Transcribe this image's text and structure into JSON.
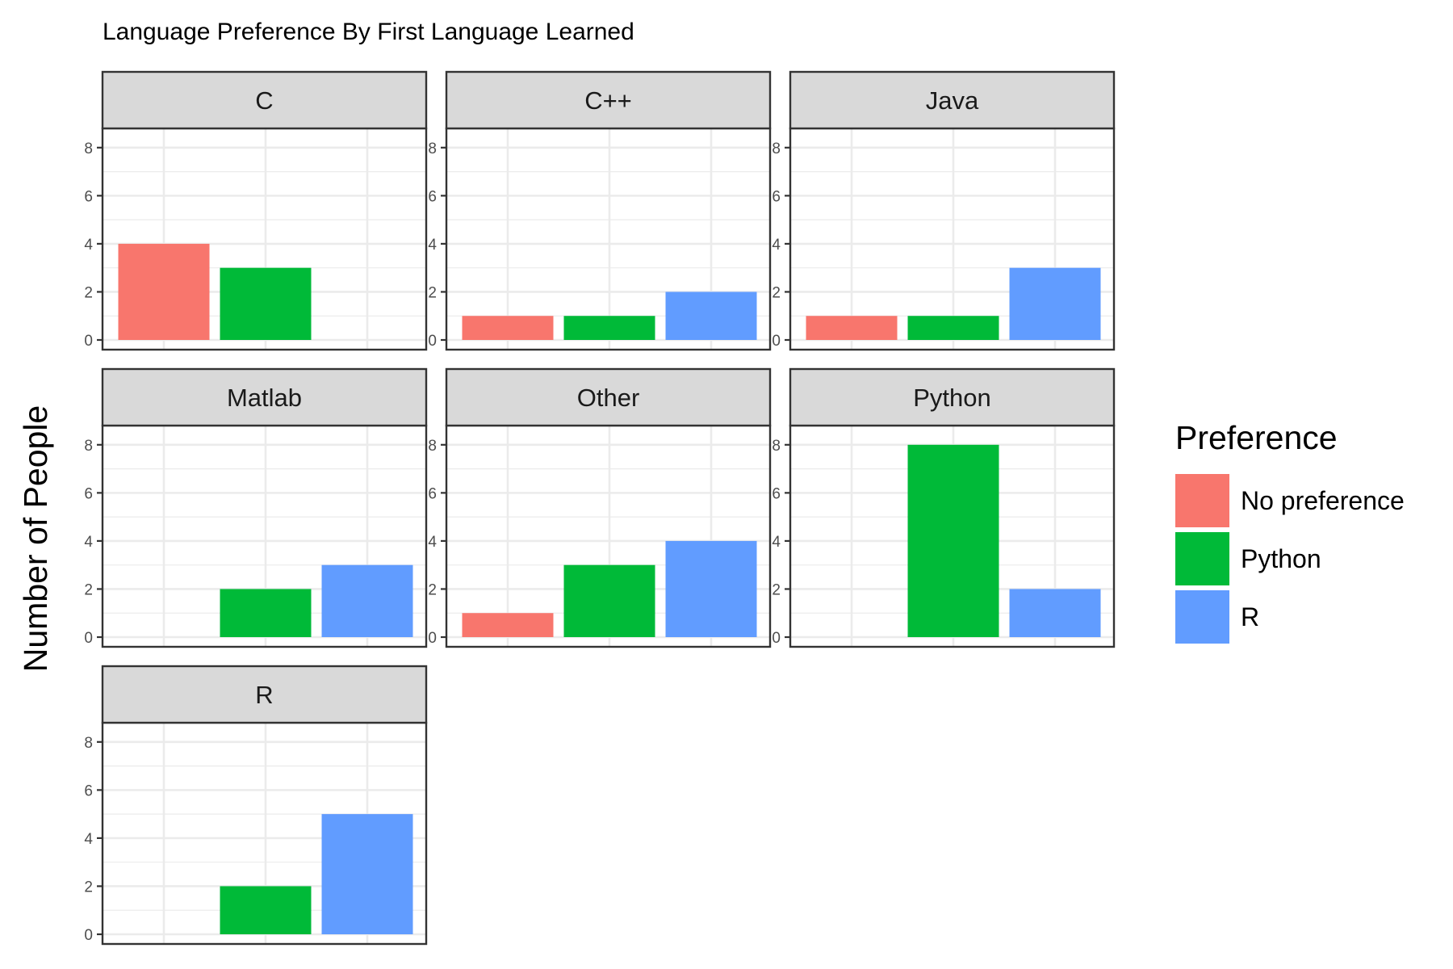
{
  "chart_data": {
    "type": "bar",
    "title": "Language Preference By First Language Learned",
    "ylabel": "Number of People",
    "xlabel": "",
    "ylim": [
      0,
      8.8
    ],
    "yticks": [
      0,
      2,
      4,
      6,
      8
    ],
    "grid": true,
    "facet_by": "First Language Learned",
    "legend": {
      "title": "Preference",
      "placement": "right",
      "entries": [
        {
          "name": "No preference",
          "color": "#F8766D"
        },
        {
          "name": "Python",
          "color": "#00BA38"
        },
        {
          "name": "R",
          "color": "#619CFF"
        }
      ]
    },
    "categories": [
      "No preference",
      "Python",
      "R"
    ],
    "panels": [
      {
        "name": "C",
        "values": [
          4,
          3,
          0
        ]
      },
      {
        "name": "C++",
        "values": [
          1,
          1,
          2
        ]
      },
      {
        "name": "Java",
        "values": [
          1,
          1,
          3
        ]
      },
      {
        "name": "Matlab",
        "values": [
          0,
          2,
          3
        ]
      },
      {
        "name": "Other",
        "values": [
          1,
          3,
          4
        ]
      },
      {
        "name": "Python",
        "values": [
          0,
          8,
          2
        ]
      },
      {
        "name": "R",
        "values": [
          0,
          2,
          5
        ]
      }
    ]
  }
}
